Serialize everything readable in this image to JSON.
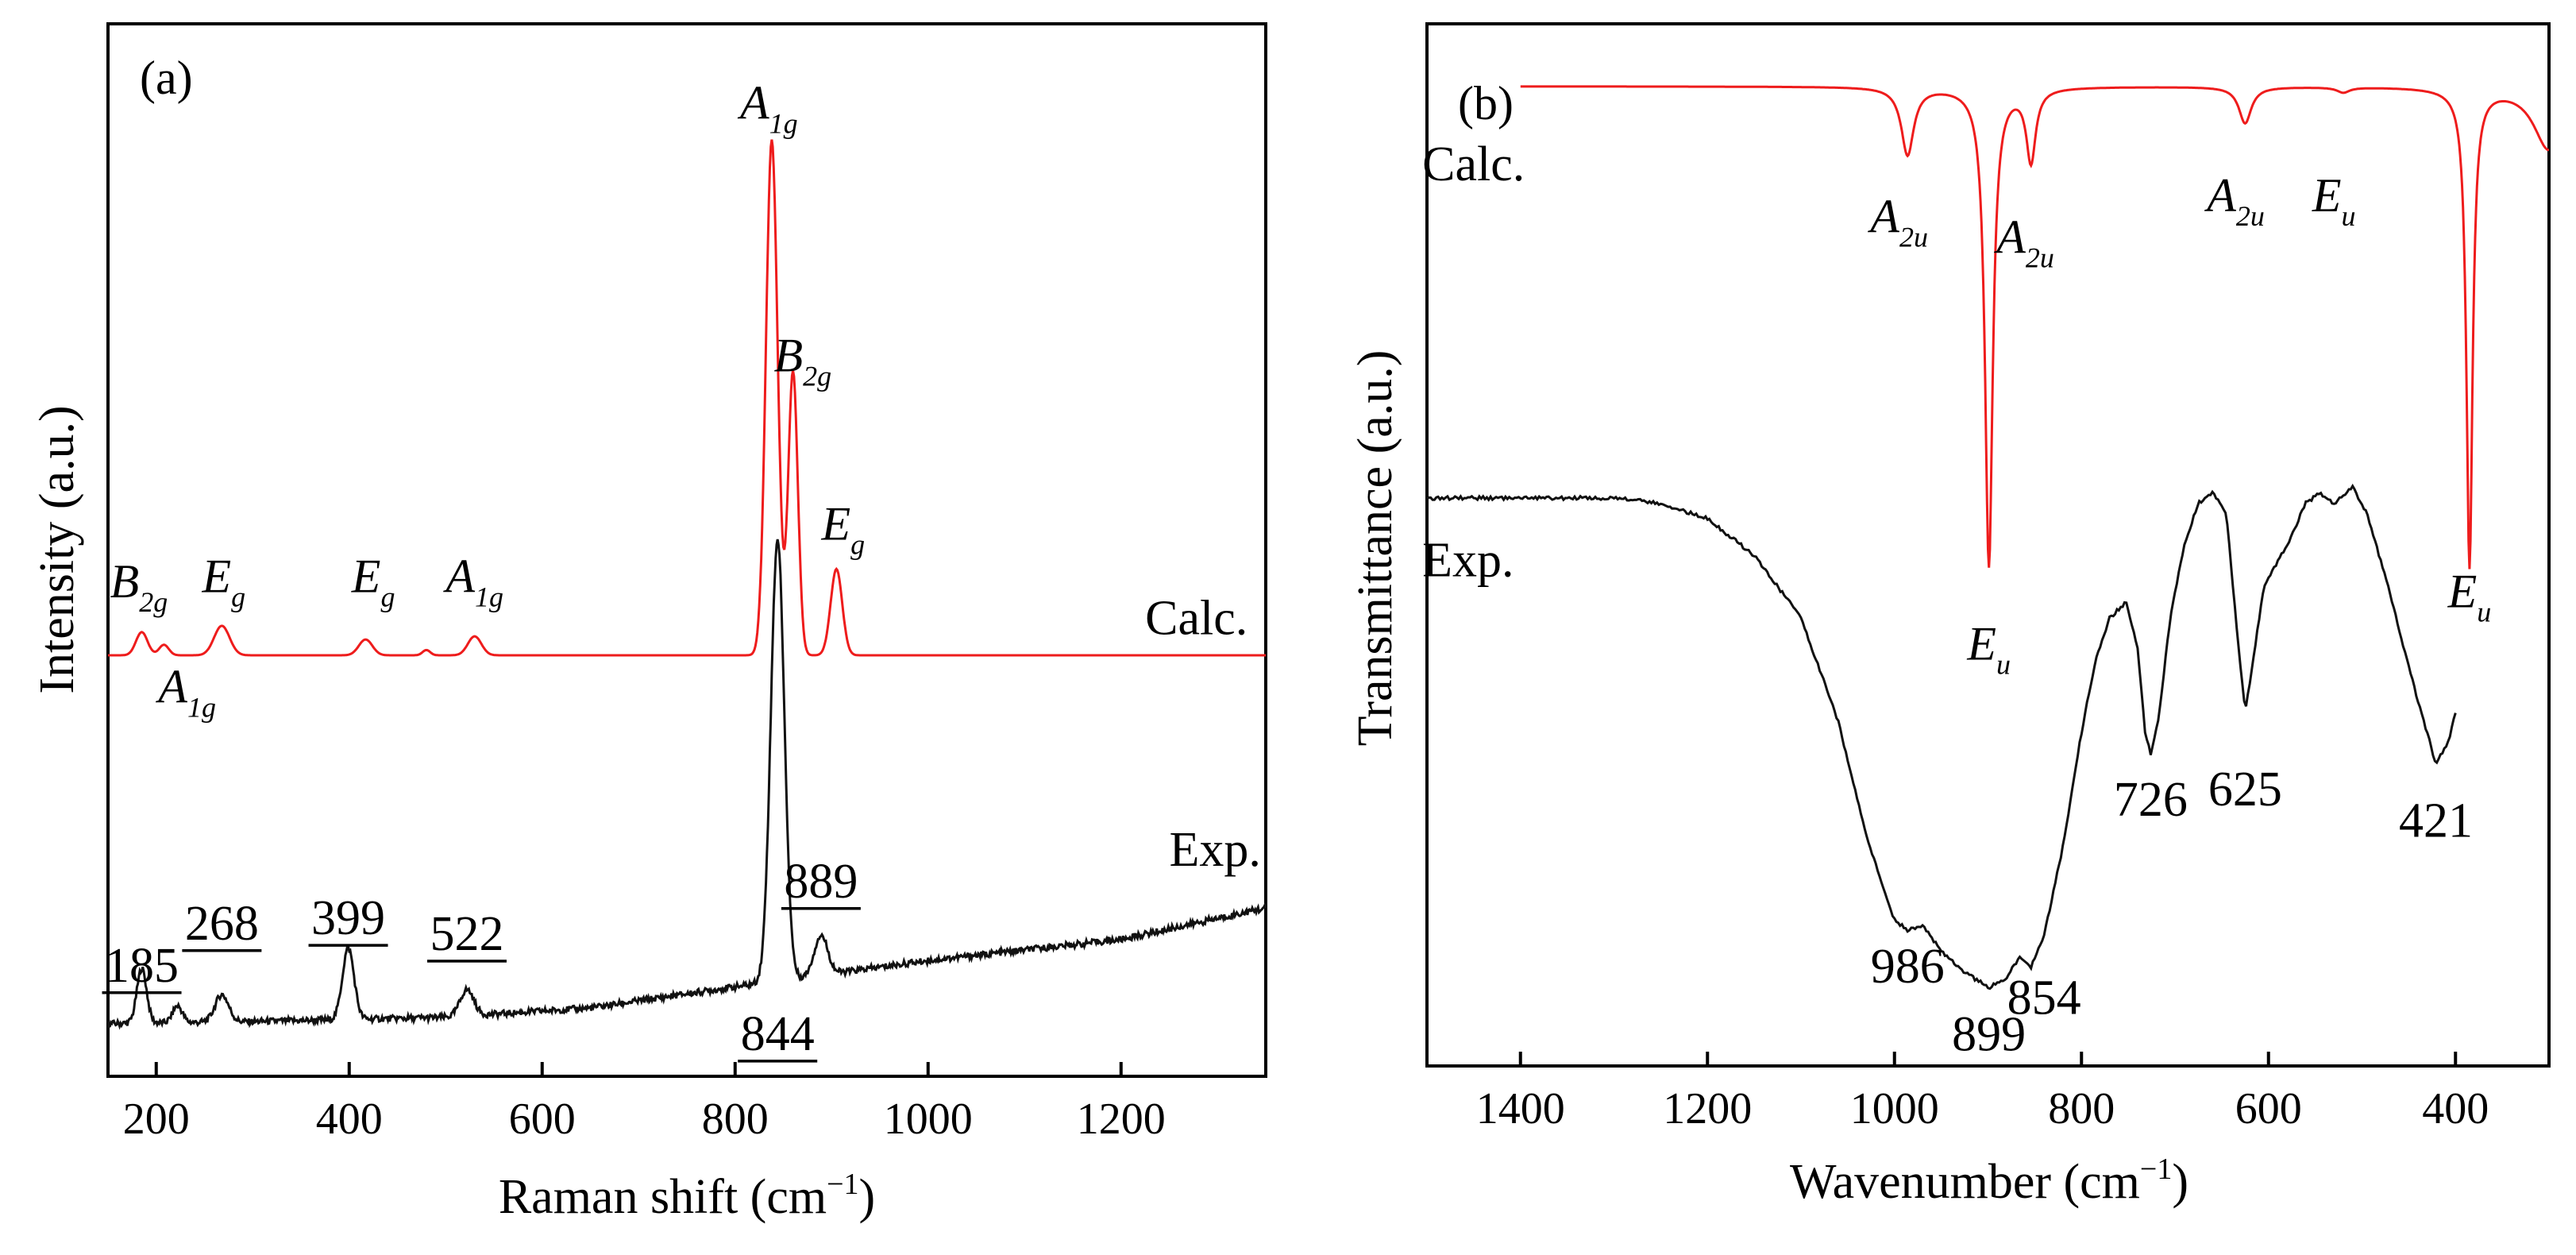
{
  "colors": {
    "calc": "#ee1c1c",
    "exp": "#111111"
  },
  "chart_data": [
    {
      "type": "line",
      "panel_label": "(a)",
      "xlabel": "Raman shift (cm",
      "xlabel_sup": "−1",
      "xlabel_end": ")",
      "ylabel": "Intensity (a.u.)",
      "xlim": [
        150,
        1350
      ],
      "ylim": [
        0,
        100
      ],
      "xticks": [
        200,
        400,
        600,
        800,
        1000,
        1200
      ],
      "series": [
        {
          "name": "Calc.",
          "offset": 40,
          "peaks": [
            {
              "x": 185,
              "h": 2.2,
              "w": 6
            },
            {
              "x": 208,
              "h": 1.0,
              "w": 5
            },
            {
              "x": 268,
              "h": 2.8,
              "w": 8
            },
            {
              "x": 417,
              "h": 1.5,
              "w": 7
            },
            {
              "x": 480,
              "h": 0.5,
              "w": 4
            },
            {
              "x": 530,
              "h": 1.8,
              "w": 7
            },
            {
              "x": 838,
              "h": 49,
              "w": 6
            },
            {
              "x": 860,
              "h": 27,
              "w": 5
            },
            {
              "x": 905,
              "h": 8.2,
              "w": 6
            }
          ]
        },
        {
          "name": "Exp.",
          "baseline": [
            [
              150,
              5
            ],
            [
              300,
              5.2
            ],
            [
              500,
              5.6
            ],
            [
              650,
              6.5
            ],
            [
              800,
              8.5
            ],
            [
              1000,
              11
            ],
            [
              1200,
              13
            ],
            [
              1350,
              16
            ]
          ],
          "peaks": [
            {
              "x": 185,
              "h": 5.2,
              "w": 5
            },
            {
              "x": 222,
              "h": 1.6,
              "w": 5
            },
            {
              "x": 268,
              "h": 2.6,
              "w": 7
            },
            {
              "x": 399,
              "h": 6.8,
              "w": 6
            },
            {
              "x": 522,
              "h": 2.5,
              "w": 7
            },
            {
              "x": 844,
              "h": 42,
              "w": 7
            },
            {
              "x": 889,
              "h": 3.8,
              "w": 7
            }
          ]
        }
      ],
      "annotations": [
        {
          "text": "Calc.",
          "x": 1225,
          "y": 42
        },
        {
          "text": "Exp.",
          "x": 1250,
          "y": 20
        }
      ],
      "mode_labels": [
        {
          "sym": "B",
          "sub": "2g",
          "x": 182,
          "y": 45.5
        },
        {
          "sym": "E",
          "sub": "g",
          "x": 270,
          "y": 46
        },
        {
          "sym": "A",
          "sub": "1g",
          "x": 232,
          "y": 35.5
        },
        {
          "sym": "E",
          "sub": "g",
          "x": 425,
          "y": 46
        },
        {
          "sym": "A",
          "sub": "1g",
          "x": 530,
          "y": 46
        },
        {
          "sym": "A",
          "sub": "1g",
          "x": 835,
          "y": 91
        },
        {
          "sym": "B",
          "sub": "2g",
          "x": 870,
          "y": 67
        },
        {
          "sym": "E",
          "sub": "g",
          "x": 912,
          "y": 51
        }
      ],
      "peak_labels": [
        {
          "text": "185",
          "x": 185,
          "y": 9
        },
        {
          "text": "268",
          "x": 268,
          "y": 13
        },
        {
          "text": "399",
          "x": 399,
          "y": 13.5
        },
        {
          "text": "522",
          "x": 522,
          "y": 12
        },
        {
          "text": "844",
          "x": 844,
          "y": 2.5
        },
        {
          "text": "889",
          "x": 889,
          "y": 17
        }
      ]
    },
    {
      "type": "line",
      "panel_label": "(b)",
      "xlabel": "Wavenumber (cm",
      "xlabel_sup": "−1",
      "xlabel_end": ")",
      "ylabel": "Transmittance (a.u.)",
      "xlim": [
        1500,
        300
      ],
      "ylim": [
        0,
        100
      ],
      "xticks": [
        1400,
        1200,
        1000,
        800,
        600,
        400
      ],
      "series": [
        {
          "name": "Calc.",
          "range": [
            1400,
            300
          ],
          "offset": 94,
          "dips": [
            {
              "x": 986,
              "d": 6.5,
              "w": 8
            },
            {
              "x": 899,
              "d": 46,
              "w": 5
            },
            {
              "x": 854,
              "d": 7,
              "w": 6
            },
            {
              "x": 625,
              "d": 3.5,
              "w": 8
            },
            {
              "x": 520,
              "d": 0.5,
              "w": 8
            },
            {
              "x": 385,
              "d": 46,
              "w": 4
            },
            {
              "x": 300,
              "d": 6,
              "w": 20
            }
          ]
        },
        {
          "name": "Exp.",
          "points": [
            [
              1500,
              54.5
            ],
            [
              1300,
              54.5
            ],
            [
              1250,
              54
            ],
            [
              1200,
              52.5
            ],
            [
              1150,
              49
            ],
            [
              1100,
              43
            ],
            [
              1060,
              33
            ],
            [
              1030,
              22
            ],
            [
              1000,
              14
            ],
            [
              986,
              13
            ],
            [
              970,
              13.5
            ],
            [
              950,
              11
            ],
            [
              925,
              9
            ],
            [
              899,
              7.5
            ],
            [
              880,
              8.5
            ],
            [
              866,
              10.5
            ],
            [
              854,
              9.5
            ],
            [
              840,
              12.5
            ],
            [
              820,
              21
            ],
            [
              800,
              32
            ],
            [
              785,
              39
            ],
            [
              770,
              43
            ],
            [
              752,
              44.5
            ],
            [
              740,
              40
            ],
            [
              732,
              32
            ],
            [
              726,
              30
            ],
            [
              718,
              33
            ],
            [
              705,
              43
            ],
            [
              690,
              50
            ],
            [
              675,
              54
            ],
            [
              660,
              55
            ],
            [
              645,
              53
            ],
            [
              632,
              40
            ],
            [
              625,
              34
            ],
            [
              618,
              38
            ],
            [
              605,
              46
            ],
            [
              580,
              50
            ],
            [
              560,
              54
            ],
            [
              545,
              55
            ],
            [
              530,
              54
            ],
            [
              510,
              55.5
            ],
            [
              495,
              53
            ],
            [
              475,
              47
            ],
            [
              455,
              40
            ],
            [
              440,
              35
            ],
            [
              421,
              29
            ],
            [
              408,
              31
            ],
            [
              400,
              34
            ]
          ]
        }
      ],
      "annotations": [
        {
          "text": "Calc.",
          "x": 1505,
          "y": 85
        },
        {
          "text": "Exp.",
          "x": 1505,
          "y": 47
        }
      ],
      "mode_labels": [
        {
          "sym": "A",
          "sub": "2u",
          "x": 995,
          "y": 80
        },
        {
          "sym": "E",
          "sub": "u",
          "x": 899,
          "y": 39
        },
        {
          "sym": "A",
          "sub": "2u",
          "x": 860,
          "y": 78
        },
        {
          "sym": "A",
          "sub": "2u",
          "x": 635,
          "y": 82
        },
        {
          "sym": "E",
          "sub": "u",
          "x": 530,
          "y": 82
        },
        {
          "sym": "E",
          "sub": "u",
          "x": 385,
          "y": 44
        }
      ],
      "peak_labels": [
        {
          "text": "986",
          "x": 986,
          "y": 8
        },
        {
          "text": "899",
          "x": 899,
          "y": 1.5
        },
        {
          "text": "854",
          "x": 840,
          "y": 5
        },
        {
          "text": "726",
          "x": 726,
          "y": 24
        },
        {
          "text": "625",
          "x": 625,
          "y": 25
        },
        {
          "text": "421",
          "x": 421,
          "y": 22
        }
      ]
    }
  ]
}
